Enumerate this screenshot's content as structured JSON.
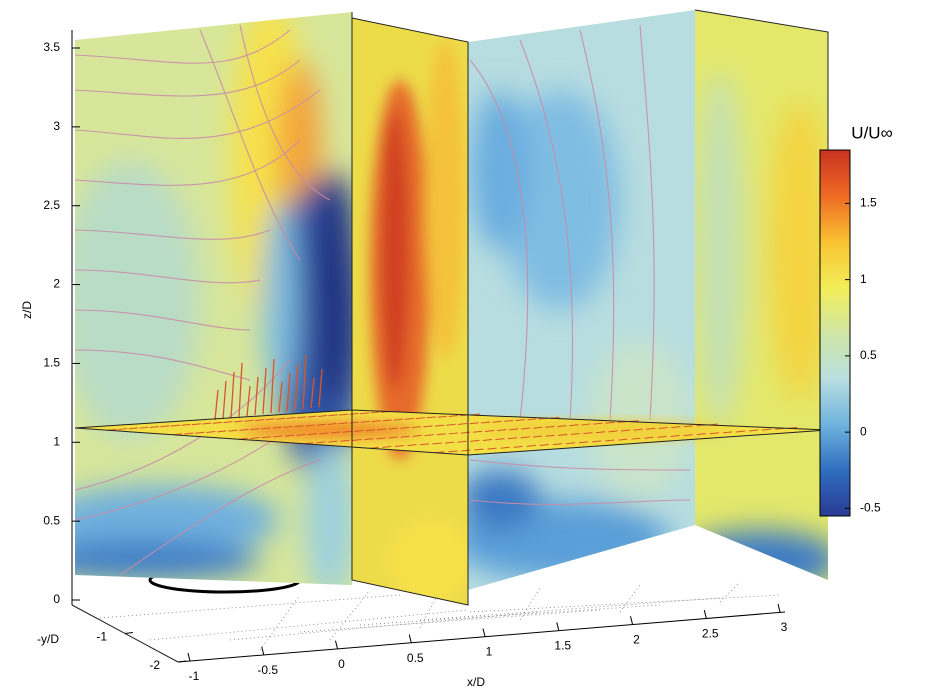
{
  "chart_data": {
    "type": "field3d",
    "xlabel": "x/D",
    "ylabel": "-y/D",
    "zlabel": "z/D",
    "xlim": [
      -1,
      3
    ],
    "xticks": [
      -1,
      -0.5,
      0,
      0.5,
      1,
      1.5,
      2,
      2.5,
      3
    ],
    "ylim": [
      0,
      -2
    ],
    "yticks": [
      -1,
      -2
    ],
    "zlim": [
      0,
      3.5
    ],
    "zticks": [
      0,
      0.5,
      1,
      1.5,
      2,
      2.5,
      3,
      3.5
    ],
    "colorbar_title": "U/U∞",
    "clim": [
      -0.55,
      1.85
    ],
    "cticks": [
      -0.5,
      0,
      0.5,
      1,
      1.5
    ],
    "colormap": [
      "#2a3a93",
      "#2f6fc0",
      "#6fb3de",
      "#b9dfe0",
      "#cfe6a4",
      "#f3ee58",
      "#f9c232",
      "#ee6a24",
      "#c8321f"
    ]
  }
}
